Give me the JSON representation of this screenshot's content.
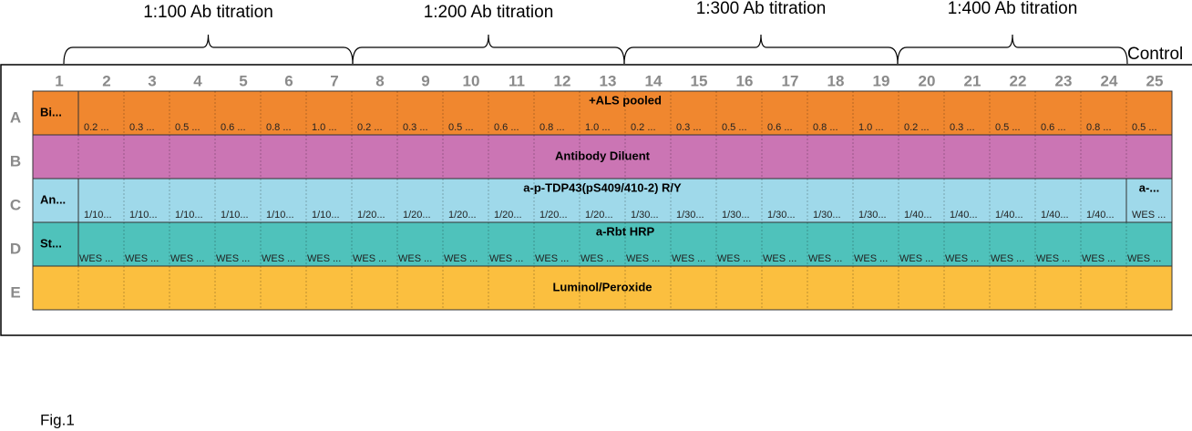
{
  "titrations": [
    "1:100 Ab titration",
    "1:200 Ab titration",
    "1:300 Ab titration",
    "1:400 Ab titration"
  ],
  "control": "Control",
  "columns": [
    1,
    2,
    3,
    4,
    5,
    6,
    7,
    8,
    9,
    10,
    11,
    12,
    13,
    14,
    15,
    16,
    17,
    18,
    19,
    20,
    21,
    22,
    23,
    24,
    25
  ],
  "rows": [
    {
      "letter": "A",
      "first": "Bi...",
      "title": "+ALS pooled",
      "cells": [
        "0.2 ...",
        "0.3 ...",
        "0.5 ...",
        "0.6 ...",
        "0.8 ...",
        "1.0 ...",
        "0.2 ...",
        "0.3 ...",
        "0.5 ...",
        "0.6 ...",
        "0.8 ...",
        "1.0 ...",
        "0.2 ...",
        "0.3 ...",
        "0.5 ...",
        "0.6 ...",
        "0.8 ...",
        "1.0 ...",
        "0.2 ...",
        "0.3 ...",
        "0.5 ...",
        "0.6 ...",
        "0.8 ...",
        "0.5 ..."
      ]
    },
    {
      "letter": "B",
      "title": "Antibody Diluent"
    },
    {
      "letter": "C",
      "first": "An...",
      "title": "a-p-TDP43(pS409/410-2) R/Y",
      "last": "a-...",
      "cells": [
        "1/10...",
        "1/10...",
        "1/10...",
        "1/10...",
        "1/10...",
        "1/10...",
        "1/20...",
        "1/20...",
        "1/20...",
        "1/20...",
        "1/20...",
        "1/20...",
        "1/30...",
        "1/30...",
        "1/30...",
        "1/30...",
        "1/30...",
        "1/30...",
        "1/40...",
        "1/40...",
        "1/40...",
        "1/40...",
        "1/40...",
        "WES ..."
      ]
    },
    {
      "letter": "D",
      "first": "St...",
      "title": "a-Rbt HRP",
      "cells": [
        "WES ...",
        "WES ...",
        "WES ...",
        "WES ...",
        "WES ...",
        "WES ...",
        "WES ...",
        "WES ...",
        "WES ...",
        "WES ...",
        "WES ...",
        "WES ...",
        "WES ...",
        "WES ...",
        "WES ...",
        "WES ...",
        "WES ...",
        "WES ...",
        "WES ...",
        "WES ...",
        "WES ...",
        "WES ...",
        "WES ...",
        "WES ..."
      ]
    },
    {
      "letter": "E",
      "title": "Luminol/Peroxide"
    }
  ],
  "caption": "Fig.1"
}
